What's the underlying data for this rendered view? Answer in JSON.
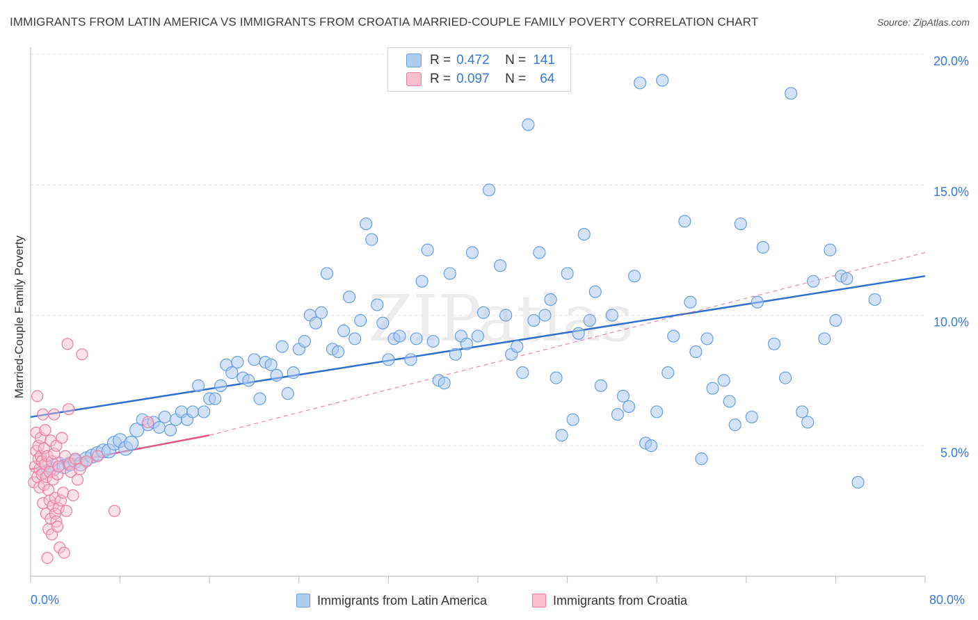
{
  "title": "IMMIGRANTS FROM LATIN AMERICA VS IMMIGRANTS FROM CROATIA MARRIED-COUPLE FAMILY POVERTY CORRELATION CHART",
  "source": "Source: ZipAtlas.com",
  "watermark": "ZIPatlas",
  "legend": {
    "series1": {
      "r_label": "R =",
      "r_value": "0.472",
      "n_label": "N =",
      "n_value": "141"
    },
    "series2": {
      "r_label": "R =",
      "r_value": "0.097",
      "n_label": "N =",
      "n_value": "64"
    }
  },
  "colors": {
    "blue_fill": "#aecbf0",
    "blue_stroke": "#6a9fe0",
    "blue_line": "#2f6fd0",
    "pink_fill": "#f7bfd0",
    "pink_stroke": "#ec7ea0",
    "pink_line": "#e0578a",
    "axis_text": "#3b78d8",
    "grid": "#e4e4e4"
  },
  "chart_data": {
    "type": "scatter",
    "xlabel": "",
    "ylabel": "Married-Couple Family Poverty",
    "xlim": [
      0,
      80
    ],
    "ylim": [
      0,
      20
    ],
    "x_tick_labels": [
      "0.0%",
      "80.0%"
    ],
    "y_ticks": [
      5,
      10,
      15,
      20
    ],
    "y_tick_labels": [
      "5.0%",
      "10.0%",
      "15.0%",
      "20.0%"
    ],
    "grid": true,
    "legend_position": "top-center",
    "series": [
      {
        "name": "Immigrants from Latin America",
        "R": 0.472,
        "N": 141,
        "trend": {
          "x": [
            0,
            80
          ],
          "y": [
            6.1,
            11.5
          ]
        },
        "points": [
          [
            1.2,
            4.0
          ],
          [
            1.5,
            4.2
          ],
          [
            2.0,
            4.1
          ],
          [
            2.5,
            4.3
          ],
          [
            3.0,
            4.2
          ],
          [
            3.5,
            4.3
          ],
          [
            4.0,
            4.4
          ],
          [
            4.5,
            4.3
          ],
          [
            5.0,
            4.5
          ],
          [
            5.5,
            4.6
          ],
          [
            6.0,
            4.7
          ],
          [
            6.5,
            4.8
          ],
          [
            7.0,
            4.8
          ],
          [
            7.5,
            5.1
          ],
          [
            8.0,
            5.2
          ],
          [
            8.5,
            4.9
          ],
          [
            9.0,
            5.1
          ],
          [
            9.5,
            5.6
          ],
          [
            10.0,
            6.0
          ],
          [
            10.5,
            5.8
          ],
          [
            11.0,
            5.9
          ],
          [
            11.5,
            5.7
          ],
          [
            12.0,
            6.1
          ],
          [
            12.5,
            5.6
          ],
          [
            13.0,
            6.0
          ],
          [
            13.5,
            6.3
          ],
          [
            14.0,
            6.0
          ],
          [
            14.5,
            6.3
          ],
          [
            15.0,
            7.3
          ],
          [
            15.5,
            6.3
          ],
          [
            16.0,
            6.8
          ],
          [
            16.5,
            6.8
          ],
          [
            17.0,
            7.3
          ],
          [
            17.5,
            8.1
          ],
          [
            18.0,
            7.8
          ],
          [
            18.5,
            8.2
          ],
          [
            19.0,
            7.6
          ],
          [
            19.5,
            7.5
          ],
          [
            20.0,
            8.3
          ],
          [
            20.5,
            6.8
          ],
          [
            21.0,
            8.2
          ],
          [
            21.5,
            8.1
          ],
          [
            22.0,
            7.7
          ],
          [
            22.5,
            8.8
          ],
          [
            23.0,
            7.0
          ],
          [
            23.5,
            7.8
          ],
          [
            24.0,
            8.7
          ],
          [
            24.5,
            9.0
          ],
          [
            25.0,
            10.0
          ],
          [
            25.5,
            9.7
          ],
          [
            26.0,
            10.1
          ],
          [
            26.5,
            11.6
          ],
          [
            27.0,
            8.7
          ],
          [
            27.5,
            8.6
          ],
          [
            28.0,
            9.4
          ],
          [
            28.5,
            10.7
          ],
          [
            29.0,
            9.1
          ],
          [
            29.5,
            9.8
          ],
          [
            30.0,
            13.5
          ],
          [
            30.5,
            12.9
          ],
          [
            31.0,
            10.4
          ],
          [
            31.5,
            9.7
          ],
          [
            32.0,
            8.3
          ],
          [
            32.5,
            9.1
          ],
          [
            33.0,
            9.2
          ],
          [
            34.0,
            8.3
          ],
          [
            34.5,
            9.1
          ],
          [
            35.0,
            11.3
          ],
          [
            35.5,
            12.5
          ],
          [
            36.0,
            9.0
          ],
          [
            36.5,
            7.5
          ],
          [
            37.0,
            7.4
          ],
          [
            37.5,
            11.6
          ],
          [
            38.0,
            8.5
          ],
          [
            38.5,
            9.2
          ],
          [
            39.0,
            8.9
          ],
          [
            39.5,
            12.4
          ],
          [
            40.0,
            9.2
          ],
          [
            40.5,
            10.1
          ],
          [
            41.0,
            14.8
          ],
          [
            42.0,
            11.9
          ],
          [
            42.5,
            10.0
          ],
          [
            43.0,
            8.5
          ],
          [
            43.5,
            8.8
          ],
          [
            44.0,
            7.8
          ],
          [
            44.5,
            17.3
          ],
          [
            45.0,
            9.8
          ],
          [
            45.5,
            12.4
          ],
          [
            46.0,
            10.0
          ],
          [
            46.5,
            10.6
          ],
          [
            47.0,
            7.6
          ],
          [
            47.5,
            5.4
          ],
          [
            48.0,
            11.6
          ],
          [
            48.5,
            6.0
          ],
          [
            49.0,
            9.3
          ],
          [
            49.5,
            13.1
          ],
          [
            50.0,
            9.8
          ],
          [
            50.5,
            10.9
          ],
          [
            51.0,
            7.3
          ],
          [
            52.0,
            10.0
          ],
          [
            52.5,
            6.2
          ],
          [
            53.0,
            6.9
          ],
          [
            53.5,
            6.5
          ],
          [
            54.0,
            11.5
          ],
          [
            54.5,
            18.9
          ],
          [
            55.0,
            5.1
          ],
          [
            55.5,
            5.0
          ],
          [
            56.0,
            6.3
          ],
          [
            56.5,
            19.0
          ],
          [
            57.0,
            7.8
          ],
          [
            57.5,
            9.2
          ],
          [
            58.5,
            13.6
          ],
          [
            59.0,
            10.5
          ],
          [
            59.5,
            8.6
          ],
          [
            60.0,
            4.5
          ],
          [
            60.5,
            9.1
          ],
          [
            61.0,
            7.2
          ],
          [
            62.0,
            7.5
          ],
          [
            62.5,
            6.7
          ],
          [
            63.0,
            5.8
          ],
          [
            63.5,
            13.5
          ],
          [
            64.5,
            6.1
          ],
          [
            65.0,
            10.5
          ],
          [
            65.5,
            12.6
          ],
          [
            66.5,
            8.9
          ],
          [
            67.5,
            7.6
          ],
          [
            68.0,
            18.5
          ],
          [
            69.0,
            6.3
          ],
          [
            69.5,
            5.9
          ],
          [
            70.0,
            11.3
          ],
          [
            71.0,
            9.1
          ],
          [
            71.5,
            12.5
          ],
          [
            72.0,
            9.8
          ],
          [
            72.5,
            11.5
          ],
          [
            73.0,
            11.4
          ],
          [
            74.0,
            3.6
          ],
          [
            75.5,
            10.6
          ]
        ]
      },
      {
        "name": "Immigrants from Croatia",
        "R": 0.097,
        "N": 64,
        "trend": {
          "x": [
            0,
            16
          ],
          "y": [
            4.1,
            5.4
          ]
        },
        "trend_extension": {
          "x": [
            16,
            80
          ],
          "y": [
            5.4,
            12.4
          ]
        },
        "points": [
          [
            0.3,
            3.6
          ],
          [
            0.4,
            4.2
          ],
          [
            0.5,
            4.8
          ],
          [
            0.5,
            5.5
          ],
          [
            0.6,
            3.8
          ],
          [
            0.6,
            6.9
          ],
          [
            0.7,
            4.5
          ],
          [
            0.7,
            5.0
          ],
          [
            0.8,
            3.4
          ],
          [
            0.8,
            4.1
          ],
          [
            0.9,
            4.6
          ],
          [
            0.9,
            5.3
          ],
          [
            1.0,
            3.9
          ],
          [
            1.0,
            4.4
          ],
          [
            1.1,
            2.8
          ],
          [
            1.1,
            6.2
          ],
          [
            1.2,
            4.9
          ],
          [
            1.2,
            3.5
          ],
          [
            1.3,
            4.3
          ],
          [
            1.3,
            5.6
          ],
          [
            1.4,
            2.4
          ],
          [
            1.4,
            3.8
          ],
          [
            1.5,
            4.6
          ],
          [
            1.5,
            0.7
          ],
          [
            1.6,
            3.3
          ],
          [
            1.6,
            1.8
          ],
          [
            1.7,
            4.0
          ],
          [
            1.7,
            2.9
          ],
          [
            1.8,
            5.2
          ],
          [
            1.8,
            2.2
          ],
          [
            1.9,
            4.4
          ],
          [
            1.9,
            1.6
          ],
          [
            2.0,
            3.7
          ],
          [
            2.0,
            2.7
          ],
          [
            2.1,
            6.2
          ],
          [
            2.1,
            4.7
          ],
          [
            2.2,
            2.4
          ],
          [
            2.2,
            3.0
          ],
          [
            2.3,
            5.0
          ],
          [
            2.3,
            2.1
          ],
          [
            2.4,
            1.9
          ],
          [
            2.4,
            3.9
          ],
          [
            2.5,
            2.6
          ],
          [
            2.5,
            4.2
          ],
          [
            2.6,
            1.1
          ],
          [
            2.7,
            2.9
          ],
          [
            2.8,
            5.3
          ],
          [
            2.9,
            3.2
          ],
          [
            3.0,
            0.9
          ],
          [
            3.1,
            4.6
          ],
          [
            3.2,
            2.5
          ],
          [
            3.3,
            8.9
          ],
          [
            3.4,
            6.4
          ],
          [
            3.5,
            4.3
          ],
          [
            3.6,
            4.0
          ],
          [
            3.8,
            3.1
          ],
          [
            4.0,
            4.5
          ],
          [
            4.2,
            3.7
          ],
          [
            4.4,
            4.1
          ],
          [
            4.6,
            8.5
          ],
          [
            5.0,
            4.4
          ],
          [
            6.0,
            4.6
          ],
          [
            7.5,
            2.5
          ],
          [
            10.5,
            5.9
          ]
        ]
      }
    ]
  },
  "bottom_legend": [
    "Immigrants from Latin America",
    "Immigrants from Croatia"
  ]
}
